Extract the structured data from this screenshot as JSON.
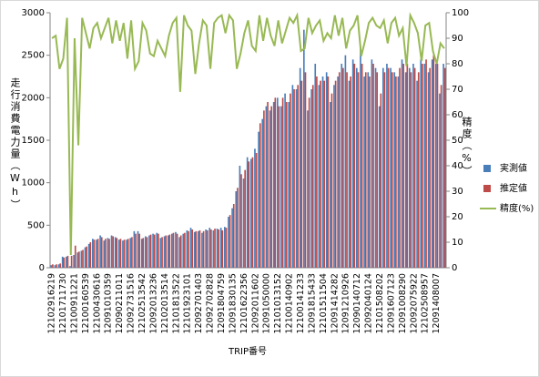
{
  "chart_data": {
    "type": "bar",
    "y_label": "走行消費電力量（Wh）",
    "y2_label": "精度（%）",
    "x_label": "TRIP番号",
    "categories": [
      "12102916219",
      null,
      null,
      "12101711730",
      null,
      null,
      "12100911221",
      null,
      null,
      "12100160539",
      null,
      null,
      "12100430616",
      null,
      null,
      "12091010359",
      null,
      null,
      "12090211011",
      null,
      null,
      "12092731516",
      null,
      null,
      "12102513542",
      null,
      null,
      "12092013236",
      null,
      null,
      "12102013514",
      null,
      null,
      "12101813522",
      null,
      null,
      "12101923101",
      null,
      null,
      "12092701403",
      null,
      null,
      "12092702828",
      null,
      null,
      "12091804759",
      null,
      null,
      "12091830135",
      null,
      null,
      "12101622356",
      null,
      null,
      "12092011602",
      null,
      null,
      "12091050000",
      null,
      null,
      "12101013152",
      null,
      null,
      "12100140902",
      null,
      null,
      "12100141233",
      null,
      null,
      "12091815433",
      null,
      null,
      "12101511504",
      null,
      null,
      "12091414282",
      null,
      null,
      "12091210926",
      null,
      null,
      "12090140712",
      null,
      null,
      "12092040124",
      null,
      null,
      "12101508202",
      null,
      null,
      "12091607123",
      null,
      null,
      "12091008290",
      null,
      null,
      "12092075922",
      null,
      null,
      "12102508957",
      null,
      null,
      "12091408007",
      null,
      null
    ],
    "series": [
      {
        "name": "実測値",
        "color": "#4a7ebb",
        "values": [
          30,
          30,
          40,
          130,
          130,
          20,
          150,
          180,
          200,
          240,
          280,
          340,
          330,
          380,
          320,
          350,
          380,
          360,
          330,
          320,
          330,
          350,
          430,
          430,
          340,
          370,
          380,
          400,
          410,
          350,
          370,
          380,
          400,
          420,
          360,
          400,
          440,
          470,
          420,
          430,
          410,
          450,
          470,
          440,
          460,
          470,
          480,
          600,
          700,
          900,
          1200,
          1050,
          1300,
          1280,
          1400,
          1600,
          1750,
          1900,
          1850,
          1950,
          2000,
          1900,
          2050,
          1950,
          2150,
          2100,
          2350,
          2800,
          1850,
          2100,
          2400,
          2150,
          2250,
          2300,
          1950,
          2150,
          2250,
          2400,
          2500,
          2200,
          2450,
          2350,
          2600,
          2250,
          2300,
          2450,
          2350,
          1900,
          2350,
          2400,
          2350,
          2300,
          2250,
          2450,
          2300,
          2350,
          2400,
          2200,
          2450,
          2400,
          2300,
          2450,
          2400,
          2050,
          2400
        ]
      },
      {
        "name": "推定値",
        "color": "#be4b48",
        "values": [
          40,
          40,
          50,
          120,
          140,
          140,
          260,
          190,
          210,
          250,
          300,
          330,
          340,
          360,
          340,
          340,
          370,
          350,
          340,
          330,
          340,
          360,
          400,
          400,
          350,
          360,
          390,
          390,
          400,
          360,
          380,
          390,
          410,
          400,
          380,
          410,
          430,
          450,
          430,
          440,
          430,
          440,
          450,
          460,
          450,
          440,
          470,
          620,
          750,
          940,
          1100,
          1150,
          1250,
          1300,
          1350,
          1700,
          1850,
          1950,
          1900,
          2000,
          1900,
          2000,
          1950,
          2050,
          2100,
          2150,
          2200,
          2300,
          2000,
          2150,
          2250,
          2200,
          2200,
          2250,
          2050,
          2200,
          2300,
          2350,
          2300,
          2250,
          2400,
          2300,
          2400,
          2300,
          2250,
          2400,
          2300,
          2050,
          2300,
          2350,
          2300,
          2250,
          2350,
          2400,
          2400,
          2300,
          2350,
          2300,
          2400,
          2450,
          2350,
          2500,
          2400,
          2150,
          2350
        ]
      },
      {
        "name": "精度(%)",
        "color": "#98b954",
        "type": "line",
        "axis": "y2",
        "values": [
          90,
          91,
          78,
          82,
          98,
          5,
          90,
          48,
          98,
          92,
          86,
          94,
          96,
          90,
          94,
          98,
          88,
          97,
          89,
          96,
          82,
          97,
          78,
          81,
          96,
          93,
          84,
          83,
          89,
          86,
          83,
          91,
          96,
          98,
          69,
          99,
          95,
          93,
          76,
          88,
          97,
          95,
          78,
          96,
          98,
          99,
          92,
          99,
          97,
          78,
          84,
          92,
          97,
          87,
          85,
          99,
          89,
          98,
          91,
          87,
          97,
          88,
          93,
          98,
          96,
          99,
          85,
          86,
          98,
          92,
          95,
          97,
          89,
          92,
          90,
          99,
          91,
          98,
          86,
          93,
          95,
          99,
          83,
          89,
          96,
          98,
          95,
          94,
          97,
          88,
          96,
          98,
          91,
          94,
          79,
          99,
          96,
          92,
          81,
          95,
          96,
          85,
          80,
          88,
          86
        ]
      }
    ],
    "ylim": [
      0,
      3000
    ],
    "yticks": [
      0,
      500,
      1000,
      1500,
      2000,
      2500,
      3000
    ],
    "y2lim": [
      0,
      100
    ],
    "y2ticks": [
      0,
      10,
      20,
      30,
      40,
      50,
      60,
      70,
      80,
      90,
      100
    ],
    "grid": false,
    "legend": "right"
  }
}
